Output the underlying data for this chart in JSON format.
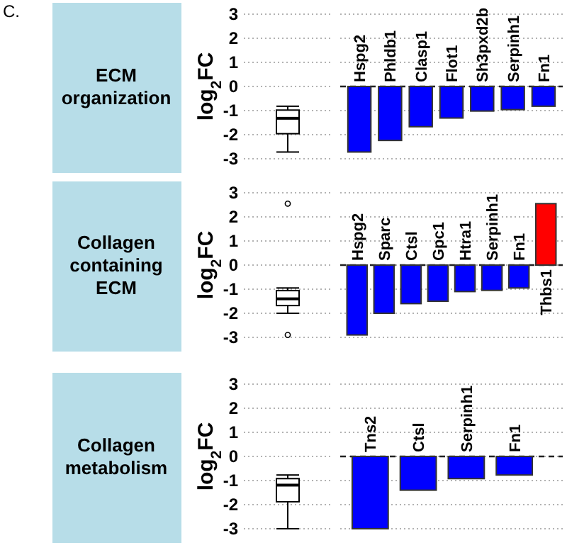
{
  "chart_data": [
    {
      "type": "box",
      "title": "ECM organization",
      "ylabel": "log$_{2}$FC",
      "annotations": [
        "C."
      ],
      "categories": [
        null
      ],
      "boxes": [
        {
          "low": -2.72,
          "q1": -1.96,
          "median": -1.32,
          "q3": -0.98,
          "high": -0.82
        }
      ],
      "ylim": [
        -3,
        3
      ],
      "yticks": [
        -3,
        -2,
        -1,
        0,
        1,
        2,
        3
      ],
      "grid": "y",
      "tick_labels": "y"
    },
    {
      "type": "bar",
      "categories": [
        "Hspg2",
        "Phldb1",
        "Clasp1",
        "Flot1",
        "Sh3pxd2b",
        "Serpinh1",
        "Fn1"
      ],
      "values": [
        -2.72,
        -2.24,
        -1.67,
        -1.31,
        -1.02,
        -0.96,
        -0.82
      ],
      "colors": [
        "#0000ff",
        "#0000ff",
        "#0000ff",
        "#0000ff",
        "#0000ff",
        "#0000ff",
        "#0000ff"
      ],
      "ylim": [
        -3,
        3
      ],
      "yticks": [
        -3,
        -2,
        -1,
        0,
        1,
        2,
        3
      ],
      "grid": "y",
      "tick_labels": "x",
      "ref_lines": [
        {
          "axis": "y",
          "value": 0,
          "line_style": "dashed"
        }
      ]
    },
    {
      "type": "box",
      "title": "Collagen containing ECM",
      "ylabel": "log$_{2}$FC",
      "categories": [
        null
      ],
      "boxes": [
        {
          "low": -2.0,
          "q1": -1.68,
          "median": -1.4,
          "q3": -1.06,
          "high": -0.95,
          "outliers": [
            2.55,
            -2.9
          ]
        }
      ],
      "ylim": [
        -3,
        3
      ],
      "yticks": [
        -3,
        -2,
        -1,
        0,
        1,
        2,
        3
      ],
      "grid": "y",
      "tick_labels": "y"
    },
    {
      "type": "bar",
      "categories": [
        "Hspg2",
        "Sparc",
        "Ctsl",
        "Gpc1",
        "Htra1",
        "Serpinh1",
        "Fn1",
        "Thbs1"
      ],
      "values": [
        -2.9,
        -2.0,
        -1.6,
        -1.5,
        -1.1,
        -1.05,
        -0.95,
        2.55
      ],
      "colors": [
        "#0000ff",
        "#0000ff",
        "#0000ff",
        "#0000ff",
        "#0000ff",
        "#0000ff",
        "#0000ff",
        "#ff0000"
      ],
      "ylim": [
        -3,
        3
      ],
      "yticks": [
        -3,
        -2,
        -1,
        0,
        1,
        2,
        3
      ],
      "grid": "y",
      "tick_labels": "x",
      "ref_lines": [
        {
          "axis": "y",
          "value": 0,
          "line_style": "dashed"
        }
      ]
    },
    {
      "type": "box",
      "title": "Collagen metabolism",
      "ylabel": "log$_{2}$FC",
      "categories": [
        null
      ],
      "boxes": [
        {
          "low": -3.0,
          "q1": -1.88,
          "median": -1.19,
          "q3": -0.92,
          "high": -0.77
        }
      ],
      "ylim": [
        -3,
        3
      ],
      "yticks": [
        -3,
        -2,
        -1,
        0,
        1,
        2,
        3
      ],
      "grid": "y",
      "tick_labels": "y"
    },
    {
      "type": "bar",
      "categories": [
        "Tns2",
        "Ctsl",
        "Serpinh1",
        "Fn1"
      ],
      "values": [
        -3.0,
        -1.4,
        -0.92,
        -0.77
      ],
      "colors": [
        "#0000ff",
        "#0000ff",
        "#0000ff",
        "#0000ff"
      ],
      "ylim": [
        -3,
        3
      ],
      "yticks": [
        -3,
        -2,
        -1,
        0,
        1,
        2,
        3
      ],
      "grid": "y",
      "tick_labels": "x",
      "ref_lines": [
        {
          "axis": "y",
          "value": 0,
          "line_style": "dashed"
        }
      ]
    }
  ]
}
